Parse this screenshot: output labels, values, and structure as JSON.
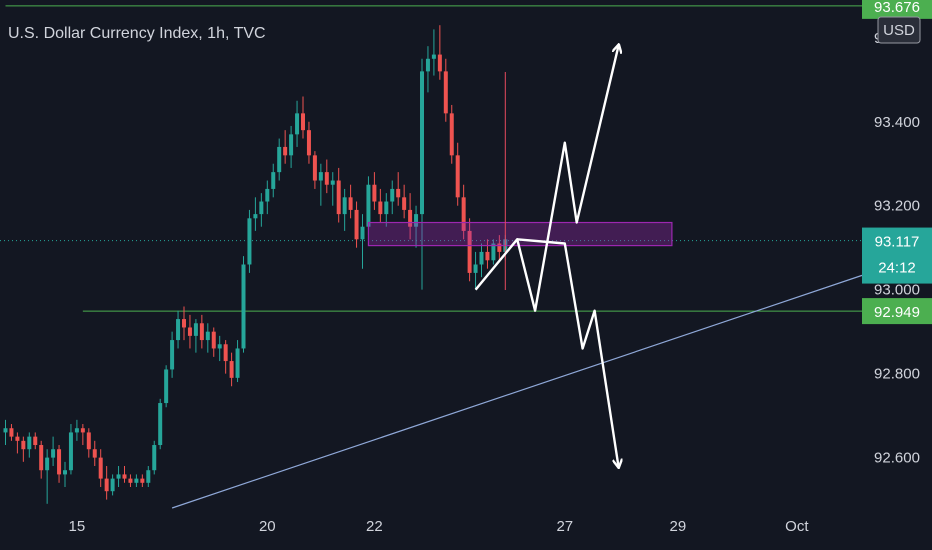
{
  "chart_data": {
    "type": "candlestick",
    "title": "U.S. Dollar Currency Index, 1h, TVC",
    "currency": "USD",
    "grid": false,
    "ylim": [
      92.48,
      93.69
    ],
    "x_ticks": [
      {
        "label": "15",
        "index": 12
      },
      {
        "label": "20",
        "index": 44
      },
      {
        "label": "22",
        "index": 62
      },
      {
        "label": "27",
        "index": 94
      },
      {
        "label": "29",
        "index": 113
      },
      {
        "label": "Oct",
        "index": 133
      }
    ],
    "y_ticks": [
      93.6,
      93.4,
      93.2,
      93.0,
      92.8,
      92.6
    ],
    "price_tags": [
      {
        "label": "93.676",
        "value": 93.676,
        "kind": "level"
      },
      {
        "label": "93.117",
        "value": 93.117,
        "kind": "last",
        "countdown": "24:12"
      },
      {
        "label": "92.949",
        "value": 92.949,
        "kind": "level"
      }
    ],
    "colors": {
      "up": "#26a69a",
      "down": "#ef5350",
      "level": "#4caf50",
      "trend": "#8fa8d8",
      "zone": "#9c27b0",
      "path": "#ffffff",
      "marker": "#e84a5f"
    },
    "horizontal_levels": [
      {
        "value": 93.676,
        "from_index": 0
      },
      {
        "value": 92.949,
        "from_index": 13
      }
    ],
    "last_price_line": 93.117,
    "trendline": {
      "from": [
        28,
        92.48
      ],
      "to": [
        141,
        93.02
      ]
    },
    "zone": {
      "from_index": 61,
      "to_index": 112,
      "low": 93.105,
      "high": 93.16
    },
    "vertical_marker_index": 84,
    "projection_up": [
      [
        79,
        93.0
      ],
      [
        86,
        93.12
      ],
      [
        89,
        92.95
      ],
      [
        94,
        93.35
      ],
      [
        96,
        93.16
      ],
      [
        103,
        93.58
      ]
    ],
    "projection_down": [
      [
        86,
        93.12
      ],
      [
        94,
        93.11
      ],
      [
        97,
        92.86
      ],
      [
        99,
        92.95
      ],
      [
        103,
        92.58
      ]
    ],
    "candles": [
      [
        92.66,
        92.69,
        92.63,
        92.67
      ],
      [
        92.67,
        92.68,
        92.64,
        92.65
      ],
      [
        92.65,
        92.66,
        92.61,
        92.64
      ],
      [
        92.64,
        92.65,
        92.59,
        92.62
      ],
      [
        92.62,
        92.66,
        92.6,
        92.65
      ],
      [
        92.65,
        92.66,
        92.62,
        92.63
      ],
      [
        92.63,
        92.64,
        92.55,
        92.57
      ],
      [
        92.57,
        92.62,
        92.49,
        92.6
      ],
      [
        92.6,
        92.65,
        92.58,
        92.62
      ],
      [
        92.62,
        92.63,
        92.54,
        92.56
      ],
      [
        92.56,
        92.59,
        92.53,
        92.57
      ],
      [
        92.57,
        92.68,
        92.56,
        92.66
      ],
      [
        92.66,
        92.69,
        92.64,
        92.67
      ],
      [
        92.67,
        92.68,
        92.63,
        92.66
      ],
      [
        92.66,
        92.67,
        92.6,
        92.62
      ],
      [
        92.62,
        92.64,
        92.58,
        92.6
      ],
      [
        92.6,
        92.62,
        92.53,
        92.55
      ],
      [
        92.55,
        92.58,
        92.5,
        92.52
      ],
      [
        92.52,
        92.56,
        92.51,
        92.55
      ],
      [
        92.55,
        92.58,
        92.53,
        92.56
      ],
      [
        92.56,
        92.58,
        92.54,
        92.55
      ],
      [
        92.55,
        92.56,
        92.53,
        92.54
      ],
      [
        92.54,
        92.56,
        92.53,
        92.55
      ],
      [
        92.55,
        92.56,
        92.53,
        92.54
      ],
      [
        92.54,
        92.58,
        92.53,
        92.57
      ],
      [
        92.57,
        92.64,
        92.56,
        92.63
      ],
      [
        92.63,
        92.74,
        92.62,
        92.73
      ],
      [
        92.73,
        92.82,
        92.72,
        92.81
      ],
      [
        92.81,
        92.9,
        92.79,
        92.88
      ],
      [
        92.88,
        92.95,
        92.86,
        92.93
      ],
      [
        92.93,
        92.96,
        92.88,
        92.91
      ],
      [
        92.91,
        92.94,
        92.86,
        92.89
      ],
      [
        92.89,
        92.93,
        92.85,
        92.92
      ],
      [
        92.92,
        92.94,
        92.86,
        92.88
      ],
      [
        92.88,
        92.92,
        92.85,
        92.9
      ],
      [
        92.9,
        92.91,
        92.84,
        92.86
      ],
      [
        92.86,
        92.89,
        92.83,
        92.87
      ],
      [
        92.87,
        92.88,
        92.8,
        92.83
      ],
      [
        92.83,
        92.85,
        92.77,
        92.79
      ],
      [
        92.79,
        92.88,
        92.78,
        92.86
      ],
      [
        92.86,
        93.08,
        92.85,
        93.06
      ],
      [
        93.06,
        93.19,
        93.04,
        93.17
      ],
      [
        93.17,
        93.22,
        93.14,
        93.18
      ],
      [
        93.18,
        93.23,
        93.15,
        93.21
      ],
      [
        93.21,
        93.26,
        93.18,
        93.24
      ],
      [
        93.24,
        93.3,
        93.22,
        93.28
      ],
      [
        93.28,
        93.36,
        93.26,
        93.34
      ],
      [
        93.34,
        93.38,
        93.3,
        93.32
      ],
      [
        93.32,
        93.39,
        93.29,
        93.37
      ],
      [
        93.37,
        93.45,
        93.34,
        93.42
      ],
      [
        93.42,
        93.46,
        93.36,
        93.38
      ],
      [
        93.38,
        93.4,
        93.3,
        93.32
      ],
      [
        93.32,
        93.33,
        93.24,
        93.26
      ],
      [
        93.26,
        93.3,
        93.2,
        93.28
      ],
      [
        93.28,
        93.31,
        93.23,
        93.25
      ],
      [
        93.25,
        93.28,
        93.2,
        93.26
      ],
      [
        93.26,
        93.29,
        93.16,
        93.18
      ],
      [
        93.18,
        93.24,
        93.14,
        93.22
      ],
      [
        93.22,
        93.25,
        93.17,
        93.19
      ],
      [
        93.19,
        93.21,
        93.1,
        93.12
      ],
      [
        93.12,
        93.18,
        93.05,
        93.15
      ],
      [
        93.15,
        93.27,
        93.13,
        93.25
      ],
      [
        93.25,
        93.28,
        93.19,
        93.21
      ],
      [
        93.21,
        93.24,
        93.16,
        93.18
      ],
      [
        93.18,
        93.23,
        93.15,
        93.21
      ],
      [
        93.21,
        93.26,
        93.18,
        93.24
      ],
      [
        93.24,
        93.28,
        93.2,
        93.22
      ],
      [
        93.22,
        93.25,
        93.17,
        93.19
      ],
      [
        93.19,
        93.23,
        93.12,
        93.15
      ],
      [
        93.15,
        93.2,
        93.1,
        93.18
      ],
      [
        93.18,
        93.55,
        93.0,
        93.52
      ],
      [
        93.52,
        93.58,
        93.47,
        93.55
      ],
      [
        93.55,
        93.62,
        93.51,
        93.56
      ],
      [
        93.56,
        93.63,
        93.5,
        93.52
      ],
      [
        93.52,
        93.55,
        93.4,
        93.42
      ],
      [
        93.42,
        93.44,
        93.3,
        93.32
      ],
      [
        93.32,
        93.35,
        93.2,
        93.22
      ],
      [
        93.22,
        93.25,
        93.12,
        93.14
      ],
      [
        93.14,
        93.17,
        93.02,
        93.04
      ],
      [
        93.04,
        93.09,
        93.0,
        93.06
      ],
      [
        93.06,
        93.11,
        93.03,
        93.09
      ],
      [
        93.09,
        93.12,
        93.05,
        93.07
      ],
      [
        93.07,
        93.12,
        93.06,
        93.11
      ],
      [
        93.11,
        93.13,
        93.07,
        93.09
      ],
      [
        93.09,
        93.13,
        93.07,
        93.12
      ]
    ]
  }
}
